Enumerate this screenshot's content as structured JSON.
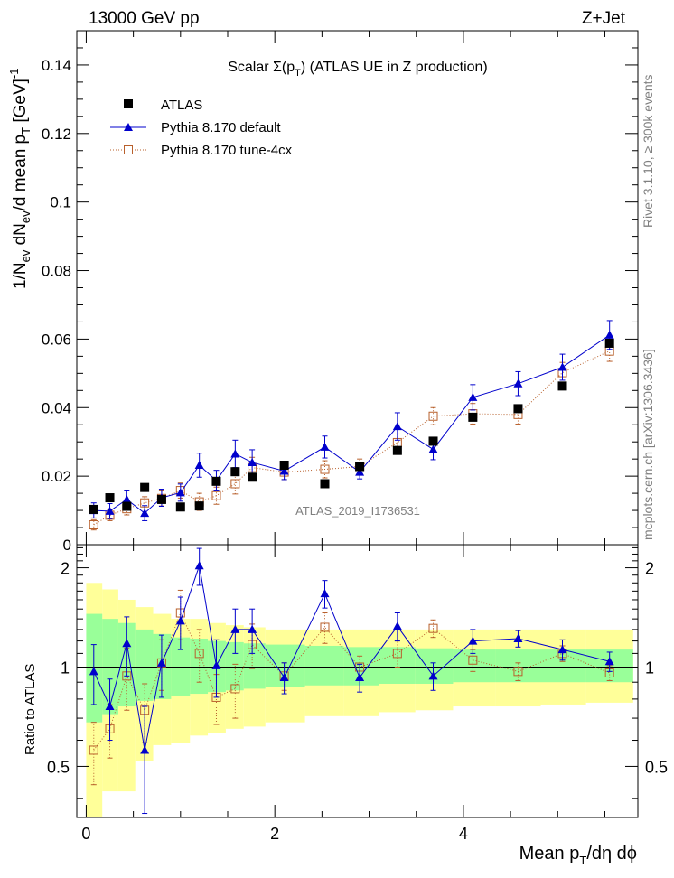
{
  "chart_data": {
    "type": "scatter",
    "header": {
      "left": "13000 GeV pp",
      "right": "Z+Jet"
    },
    "title": "Scalar Σ(pT) (ATLAS UE in Z production)",
    "title_parts": {
      "pre": "Scalar ",
      "sigma": "Σ(p",
      "sub": "T",
      "post": ") (ATLAS UE in Z production)"
    },
    "watermark": "ATLAS_2019_I1736531",
    "side_labels": {
      "top": "Rivet 3.1.10, ≥ 300k events",
      "bottom": "mcplots.cern.ch [arXiv:1306.3436]"
    },
    "xlabel": "Mean pT/dη dϕ",
    "ylabel": "1/Nev dNev/d mean pT [GeV]-1",
    "ylabel_ratio": "Ratio to ATLAS",
    "xlim": [
      -0.1,
      5.85
    ],
    "ylim_main": [
      0,
      0.15
    ],
    "ylim_ratio": [
      0.35,
      2.35
    ],
    "x_ticks": [
      0,
      2,
      4
    ],
    "x_tick_labels": [
      "0",
      "2",
      "4"
    ],
    "y_ticks_main": [
      0,
      0.02,
      0.04,
      0.06,
      0.08,
      0.1,
      0.12,
      0.14
    ],
    "y_tick_labels_main": [
      "0",
      "0.02",
      "0.04",
      "0.06",
      "0.08",
      "0.1",
      "0.12",
      "0.14"
    ],
    "y_ticks_ratio": [
      0.5,
      1,
      2
    ],
    "y_tick_labels_ratio": [
      "0.5",
      "1",
      "2"
    ],
    "legend": [
      {
        "name": "ATLAS",
        "marker": "square-filled",
        "color": "#000000"
      },
      {
        "name": "Pythia 8.170 default",
        "marker": "triangle",
        "color": "#0000cc"
      },
      {
        "name": "Pythia 8.170 tune-4cx",
        "marker": "square-open",
        "color": "#b8602c"
      }
    ],
    "x": [
      0.08,
      0.25,
      0.43,
      0.62,
      0.8,
      1.0,
      1.2,
      1.38,
      1.58,
      1.76,
      2.1,
      2.53,
      2.9,
      3.3,
      3.68,
      4.1,
      4.58,
      5.05,
      5.55
    ],
    "series": [
      {
        "name": "ATLAS",
        "values": [
          0.0103,
          0.0137,
          0.0112,
          0.0167,
          0.0132,
          0.011,
          0.0113,
          0.0185,
          0.0213,
          0.0197,
          0.0232,
          0.0178,
          0.0228,
          0.0275,
          0.0302,
          0.0372,
          0.0397,
          0.0463,
          0.0588
        ]
      },
      {
        "name": "Pythia 8.170 default",
        "values": [
          0.01,
          0.0098,
          0.0132,
          0.0092,
          0.0137,
          0.0152,
          0.0232,
          0.0187,
          0.0265,
          0.024,
          0.0215,
          0.0285,
          0.0212,
          0.0345,
          0.0278,
          0.043,
          0.047,
          0.0518,
          0.0612
        ],
        "errors": [
          0.0022,
          0.0022,
          0.0025,
          0.0022,
          0.0025,
          0.0025,
          0.0035,
          0.003,
          0.004,
          0.0037,
          0.0025,
          0.0032,
          0.002,
          0.004,
          0.003,
          0.0037,
          0.0035,
          0.0038,
          0.0042
        ],
        "ratio": [
          0.97,
          0.76,
          1.18,
          0.56,
          1.03,
          1.38,
          2.03,
          1.01,
          1.3,
          1.3,
          0.93,
          1.67,
          0.93,
          1.33,
          0.94,
          1.2,
          1.22,
          1.13,
          1.04
        ],
        "ratio_errors": [
          0.2,
          0.16,
          0.24,
          0.2,
          0.22,
          0.25,
          0.26,
          0.2,
          0.2,
          0.2,
          0.1,
          0.16,
          0.09,
          0.13,
          0.09,
          0.1,
          0.07,
          0.08,
          0.07
        ]
      },
      {
        "name": "Pythia 8.170 tune-4cx",
        "values": [
          0.0058,
          0.0086,
          0.0105,
          0.0122,
          0.0135,
          0.0158,
          0.0125,
          0.0143,
          0.0178,
          0.0225,
          0.0212,
          0.022,
          0.0228,
          0.0298,
          0.0375,
          0.0382,
          0.038,
          0.0502,
          0.0565
        ],
        "errors": [
          0.0015,
          0.0016,
          0.0018,
          0.0018,
          0.0022,
          0.0022,
          0.0025,
          0.0025,
          0.003,
          0.003,
          0.0022,
          0.0025,
          0.0022,
          0.0025,
          0.0025,
          0.003,
          0.0028,
          0.003,
          0.003
        ],
        "ratio": [
          0.56,
          0.65,
          0.94,
          0.74,
          1.03,
          1.46,
          1.1,
          0.81,
          0.86,
          1.17,
          0.94,
          1.32,
          1.0,
          1.1,
          1.31,
          1.05,
          0.97,
          1.1,
          0.96
        ],
        "ratio_errors": [
          0.12,
          0.12,
          0.2,
          0.15,
          0.18,
          0.25,
          0.2,
          0.14,
          0.16,
          0.18,
          0.09,
          0.14,
          0.08,
          0.1,
          0.08,
          0.08,
          0.06,
          0.06,
          0.05
        ]
      }
    ],
    "x_bin_edges": [
      0.0,
      0.17,
      0.34,
      0.52,
      0.71,
      0.9,
      1.1,
      1.29,
      1.48,
      1.67,
      1.9,
      2.32,
      2.73,
      3.1,
      3.49,
      3.89,
      4.34,
      4.82,
      5.3,
      5.8
    ],
    "ratio_band_inner": [
      [
        0.68,
        1.45
      ],
      [
        0.72,
        1.4
      ],
      [
        0.76,
        1.36
      ],
      [
        0.79,
        1.3
      ],
      [
        0.8,
        1.26
      ],
      [
        0.82,
        1.23
      ],
      [
        0.83,
        1.22
      ],
      [
        0.84,
        1.2
      ],
      [
        0.85,
        1.19
      ],
      [
        0.86,
        1.18
      ],
      [
        0.87,
        1.17
      ],
      [
        0.88,
        1.16
      ],
      [
        0.88,
        1.15
      ],
      [
        0.89,
        1.15
      ],
      [
        0.89,
        1.14
      ],
      [
        0.9,
        1.13
      ],
      [
        0.9,
        1.13
      ],
      [
        0.9,
        1.13
      ],
      [
        0.9,
        1.13
      ]
    ],
    "ratio_band_outer": [
      [
        0.35,
        1.8
      ],
      [
        0.42,
        1.72
      ],
      [
        0.42,
        1.6
      ],
      [
        0.52,
        1.52
      ],
      [
        0.58,
        1.45
      ],
      [
        0.59,
        1.4
      ],
      [
        0.62,
        1.4
      ],
      [
        0.63,
        1.36
      ],
      [
        0.65,
        1.34
      ],
      [
        0.66,
        1.32
      ],
      [
        0.68,
        1.3
      ],
      [
        0.71,
        1.3
      ],
      [
        0.71,
        1.3
      ],
      [
        0.73,
        1.3
      ],
      [
        0.74,
        1.3
      ],
      [
        0.76,
        1.3
      ],
      [
        0.76,
        1.3
      ],
      [
        0.77,
        1.3
      ],
      [
        0.78,
        1.3
      ]
    ],
    "colors": {
      "atlas": "#000000",
      "default": "#0000cc",
      "tune": "#b8602c",
      "band_inner": "#99ff99",
      "band_outer": "#ffff99"
    },
    "grid": false,
    "legend_position": "top-left"
  }
}
